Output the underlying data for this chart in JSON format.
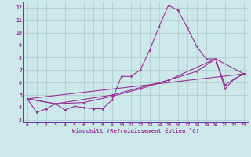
{
  "xlabel": "Windchill (Refroidissement éolien,°C)",
  "bg_color": "#cce8e8",
  "line_color": "#993399",
  "grid_color": "#aacccc",
  "spine_color": "#6633aa",
  "xlim": [
    -0.5,
    23.5
  ],
  "ylim": [
    2.8,
    12.5
  ],
  "yticks": [
    3,
    4,
    5,
    6,
    7,
    8,
    9,
    10,
    11,
    12
  ],
  "xticks": [
    0,
    1,
    2,
    3,
    4,
    5,
    6,
    7,
    8,
    9,
    10,
    11,
    12,
    13,
    14,
    15,
    16,
    17,
    18,
    19,
    20,
    21,
    22,
    23
  ],
  "series1": [
    [
      0,
      4.7
    ],
    [
      1,
      3.6
    ],
    [
      2,
      3.9
    ],
    [
      3,
      4.3
    ],
    [
      4,
      3.8
    ],
    [
      5,
      4.1
    ],
    [
      6,
      4.0
    ],
    [
      7,
      3.9
    ],
    [
      8,
      3.9
    ],
    [
      9,
      4.6
    ],
    [
      10,
      6.5
    ],
    [
      11,
      6.5
    ],
    [
      12,
      7.0
    ],
    [
      13,
      8.6
    ],
    [
      14,
      10.5
    ],
    [
      15,
      12.2
    ],
    [
      16,
      11.8
    ],
    [
      17,
      10.4
    ],
    [
      18,
      8.9
    ],
    [
      19,
      7.9
    ],
    [
      20,
      7.9
    ],
    [
      21,
      5.5
    ],
    [
      22,
      6.3
    ],
    [
      23,
      6.7
    ]
  ],
  "series2": [
    [
      0,
      4.7
    ],
    [
      23,
      6.7
    ]
  ],
  "series3": [
    [
      0,
      4.7
    ],
    [
      3,
      4.3
    ],
    [
      9,
      5.0
    ],
    [
      15,
      6.2
    ],
    [
      20,
      7.9
    ],
    [
      23,
      6.7
    ]
  ],
  "series4": [
    [
      0,
      4.7
    ],
    [
      3,
      4.3
    ],
    [
      6,
      4.4
    ],
    [
      9,
      4.9
    ],
    [
      12,
      5.5
    ],
    [
      15,
      6.2
    ],
    [
      18,
      6.9
    ],
    [
      20,
      7.9
    ],
    [
      21,
      5.8
    ],
    [
      22,
      6.3
    ],
    [
      23,
      6.7
    ]
  ]
}
